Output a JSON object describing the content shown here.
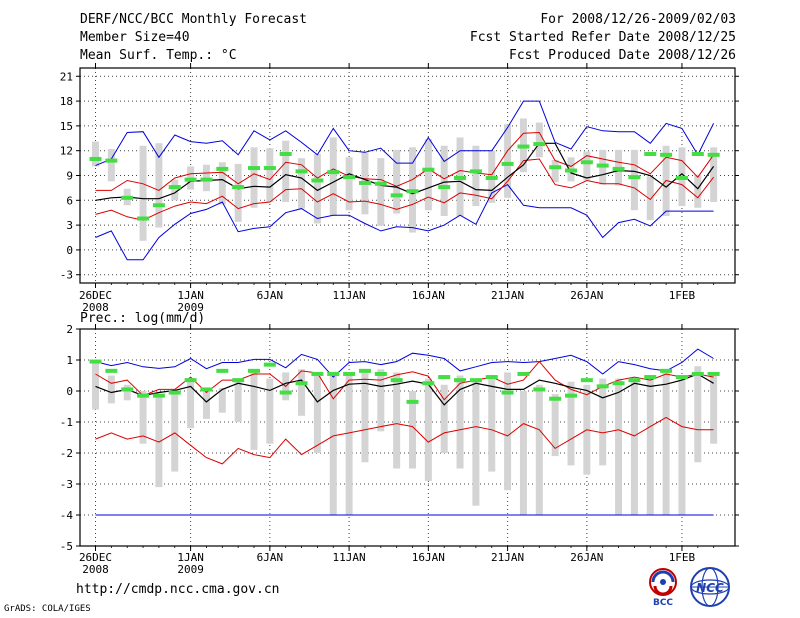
{
  "header": {
    "title": "DERF/NCC/BCC Monthly Forecast",
    "member_size": "Member Size=40",
    "variable": "Mean Surf. Temp.: °C",
    "period": "For 2008/12/26-2009/02/03",
    "started": "Fcst Started Refer Date 2008/12/25",
    "produced": "Fcst Produced Date 2008/12/26"
  },
  "footer": {
    "url": "http://cmdp.ncc.cma.gov.cn",
    "credit": "GrADS: COLA/IGES",
    "logo_bcc": "BCC",
    "logo_ncc": "NCC"
  },
  "colors": {
    "envelope": "#0000dd",
    "spread": "#dd0000",
    "mean": "#000000",
    "median": "#44dd44",
    "box": "#d4d4d4",
    "grid": "#444444"
  },
  "x_ticks": [
    {
      "day": 1,
      "label": "26DEC",
      "sub": "2008"
    },
    {
      "day": 7,
      "label": "1JAN",
      "sub": "2009"
    },
    {
      "day": 12,
      "label": "6JAN",
      "sub": ""
    },
    {
      "day": 17,
      "label": "11JAN",
      "sub": ""
    },
    {
      "day": 22,
      "label": "16JAN",
      "sub": ""
    },
    {
      "day": 27,
      "label": "21JAN",
      "sub": ""
    },
    {
      "day": 32,
      "label": "26JAN",
      "sub": ""
    },
    {
      "day": 38,
      "label": "1FEB",
      "sub": ""
    }
  ],
  "chart_data": [
    {
      "type": "line",
      "title": "Mean Surf. Temp.: °C",
      "ylabel": "°C",
      "xlabel": "",
      "ylim": [
        -4,
        22
      ],
      "yticks": [
        -3,
        0,
        3,
        6,
        9,
        12,
        15,
        18,
        21
      ],
      "x": [
        1,
        2,
        3,
        4,
        5,
        6,
        7,
        8,
        9,
        10,
        11,
        12,
        13,
        14,
        15,
        16,
        17,
        18,
        19,
        20,
        21,
        22,
        23,
        24,
        25,
        26,
        27,
        28,
        29,
        30,
        31,
        32,
        33,
        34,
        35,
        36,
        37,
        38,
        39,
        40
      ],
      "series": [
        {
          "name": "ensemble max",
          "role": "envelope",
          "values": [
            1.5,
            2.3,
            -1.2,
            -1.2,
            1.5,
            3.1,
            4.4,
            4.9,
            5.8,
            2.2,
            2.6,
            2.8,
            4.5,
            5.0,
            3.8,
            4.2,
            4.2,
            3.2,
            2.3,
            2.8,
            2.7,
            2.3,
            3.0,
            4.2,
            3.1,
            6.9,
            7.9,
            5.4,
            5.1,
            5.1,
            5.1,
            4.2,
            1.5,
            3.3,
            3.7,
            2.9,
            4.7,
            4.7,
            4.7,
            4.7
          ]
        },
        {
          "name": "ensemble min",
          "role": "envelope",
          "values": [
            10.2,
            11.0,
            14.2,
            14.3,
            11.2,
            13.9,
            13.1,
            12.9,
            13.2,
            11.5,
            14.4,
            13.3,
            14.4,
            13.0,
            11.5,
            14.7,
            12.0,
            11.8,
            12.3,
            10.5,
            10.5,
            13.6,
            10.7,
            12.0,
            12.0,
            12.0,
            14.8,
            18.0,
            18.0,
            13.0,
            12.2,
            14.9,
            14.4,
            14.3,
            14.3,
            12.9,
            15.3,
            14.7,
            11.5,
            15.3
          ]
        },
        {
          "name": "mean + 1 sd",
          "role": "spread",
          "values": [
            7.2,
            7.2,
            8.4,
            8.0,
            7.2,
            8.7,
            9.2,
            9.3,
            9.4,
            8.0,
            9.2,
            8.5,
            10.6,
            10.3,
            8.7,
            9.8,
            8.9,
            8.6,
            8.5,
            7.7,
            8.5,
            9.8,
            8.6,
            9.6,
            9.3,
            9.1,
            12.0,
            14.1,
            14.2,
            10.8,
            10.1,
            11.4,
            11.0,
            10.6,
            10.3,
            9.2,
            11.2,
            10.8,
            8.8,
            11.5
          ]
        },
        {
          "name": "mean - 1 sd",
          "role": "spread",
          "values": [
            4.3,
            4.8,
            4.0,
            3.6,
            4.5,
            5.3,
            5.8,
            5.6,
            6.5,
            5.0,
            5.6,
            5.8,
            7.3,
            7.4,
            5.8,
            6.8,
            5.8,
            5.9,
            5.5,
            4.9,
            5.5,
            6.4,
            5.7,
            6.9,
            6.6,
            6.2,
            8.3,
            10.8,
            11.0,
            7.9,
            7.5,
            8.4,
            8.0,
            8.0,
            7.5,
            6.1,
            8.4,
            7.9,
            6.3,
            8.8
          ]
        },
        {
          "name": "ensemble mean",
          "role": "mean",
          "values": [
            6.0,
            6.3,
            6.4,
            6.2,
            6.2,
            6.9,
            8.3,
            8.4,
            8.5,
            7.4,
            7.7,
            7.6,
            9.1,
            8.7,
            7.2,
            8.2,
            9.2,
            8.5,
            7.8,
            7.6,
            6.8,
            7.5,
            8.2,
            8.3,
            7.3,
            7.2,
            8.8,
            10.3,
            12.9,
            12.9,
            9.3,
            8.7,
            9.1,
            9.6,
            9.5,
            9.0,
            7.6,
            9.2,
            7.4,
            10.1
          ]
        }
      ],
      "boxes_top": [
        13.1,
        12.2,
        7.4,
        12.6,
        12.9,
        8.5,
        10.1,
        10.3,
        10.6,
        10.4,
        12.4,
        12.3,
        13.2,
        11.1,
        11.6,
        13.6,
        11.2,
        11.8,
        11.1,
        12.1,
        12.4,
        13.4,
        12.6,
        13.6,
        12.6,
        12.0,
        15.2,
        15.9,
        15.4,
        10.9,
        11.2,
        11.9,
        12.1,
        12.1,
        12.1,
        8.9,
        12.6,
        12.4,
        9.1,
        12.4
      ],
      "boxes_bottom": [
        10.1,
        8.3,
        5.4,
        1.1,
        2.7,
        6.0,
        7.3,
        7.1,
        5.5,
        3.4,
        5.1,
        5.8,
        5.8,
        5.0,
        3.2,
        4.1,
        4.8,
        4.3,
        2.9,
        4.4,
        2.1,
        4.8,
        4.1,
        4.1,
        5.3,
        5.7,
        6.3,
        9.4,
        11.2,
        8.2,
        8.3,
        8.4,
        7.9,
        7.8,
        4.8,
        3.6,
        4.1,
        5.3,
        5.1,
        5.8
      ],
      "median": [
        11.0,
        10.8,
        6.3,
        3.8,
        5.4,
        7.6,
        8.5,
        8.5,
        9.8,
        7.6,
        9.9,
        9.9,
        11.6,
        9.5,
        8.4,
        9.4,
        8.8,
        8.1,
        8.0,
        6.6,
        7.1,
        9.7,
        7.6,
        8.7,
        9.5,
        8.7,
        10.4,
        12.5,
        12.8,
        10.0,
        9.6,
        10.6,
        10.2,
        9.8,
        8.8,
        11.6,
        11.5,
        8.7,
        11.6,
        11.5
      ]
    },
    {
      "type": "line",
      "title": "Prec.: log(mm/d)",
      "ylabel": "log(mm/d)",
      "xlabel": "",
      "ylim": [
        -5,
        2
      ],
      "yticks": [
        -5,
        -4,
        -3,
        -2,
        -1,
        0,
        1,
        2
      ],
      "x": [
        1,
        2,
        3,
        4,
        5,
        6,
        7,
        8,
        9,
        10,
        11,
        12,
        13,
        14,
        15,
        16,
        17,
        18,
        19,
        20,
        21,
        22,
        23,
        24,
        25,
        26,
        27,
        28,
        29,
        30,
        31,
        32,
        33,
        34,
        35,
        36,
        37,
        38,
        39,
        40
      ],
      "series": [
        {
          "name": "ensemble max",
          "role": "envelope",
          "values": [
            0.95,
            0.82,
            0.92,
            0.78,
            0.73,
            0.78,
            1.05,
            0.72,
            0.92,
            0.92,
            1.02,
            1.02,
            0.75,
            1.18,
            1.02,
            0.45,
            0.92,
            0.95,
            0.85,
            0.95,
            1.22,
            1.15,
            1.05,
            0.65,
            0.78,
            0.92,
            0.95,
            0.92,
            0.95,
            1.05,
            1.15,
            0.95,
            0.55,
            0.95,
            0.85,
            0.72,
            0.65,
            0.92,
            1.35,
            1.05
          ]
        },
        {
          "name": "ensemble min",
          "role": "envelope",
          "values": [
            -4,
            -4,
            -4,
            -4,
            -4,
            -4,
            -4,
            -4,
            -4,
            -4,
            -4,
            -4,
            -4,
            -4,
            -4,
            -4,
            -4,
            -4,
            -4,
            -4,
            -4,
            -4,
            -4,
            -4,
            -4,
            -4,
            -4,
            -4,
            -4,
            -4,
            -4,
            -4,
            -4,
            -4,
            -4,
            -4,
            -4,
            -4,
            -4,
            -4
          ]
        },
        {
          "name": "mean + 1 sd",
          "role": "spread",
          "values": [
            0.55,
            0.25,
            0.35,
            -0.15,
            0.05,
            0.05,
            0.45,
            -0.05,
            0.35,
            0.35,
            0.55,
            0.55,
            0.15,
            0.65,
            0.58,
            -0.25,
            0.35,
            0.38,
            0.35,
            0.52,
            0.62,
            0.48,
            -0.28,
            0.25,
            0.35,
            0.45,
            0.22,
            0.35,
            0.95,
            0.35,
            0.05,
            -0.12,
            0.15,
            0.35,
            0.45,
            0.35,
            0.55,
            0.45,
            0.55,
            0.45
          ]
        },
        {
          "name": "mean - 1 sd",
          "role": "spread",
          "values": [
            -1.55,
            -1.35,
            -1.55,
            -1.45,
            -1.65,
            -1.35,
            -1.75,
            -2.15,
            -2.35,
            -1.85,
            -2.05,
            -2.15,
            -1.55,
            -2.05,
            -1.75,
            -1.45,
            -1.35,
            -1.25,
            -1.15,
            -1.05,
            -1.15,
            -1.65,
            -1.35,
            -1.25,
            -1.15,
            -1.25,
            -1.45,
            -1.05,
            -1.25,
            -1.85,
            -1.55,
            -1.25,
            -1.35,
            -1.25,
            -1.45,
            -1.15,
            -0.85,
            -1.15,
            -1.25,
            -1.25
          ]
        },
        {
          "name": "ensemble mean",
          "role": "mean",
          "values": [
            0.15,
            -0.05,
            0.05,
            -0.15,
            -0.05,
            0.02,
            0.15,
            -0.35,
            0.05,
            0.25,
            0.15,
            0.02,
            0.25,
            0.35,
            -0.35,
            0.02,
            0.22,
            0.25,
            0.15,
            0.22,
            0.32,
            0.22,
            -0.45,
            0.05,
            0.25,
            0.15,
            0.05,
            0.05,
            0.35,
            0.25,
            0.12,
            0.02,
            -0.22,
            -0.05,
            0.25,
            0.15,
            0.22,
            0.35,
            0.55,
            0.25
          ]
        }
      ],
      "boxes_top": [
        1.0,
        0.5,
        0.2,
        0.0,
        -0.1,
        0.0,
        0.3,
        0.1,
        0.1,
        0.4,
        0.6,
        0.4,
        0.6,
        0.7,
        0.5,
        0.6,
        0.6,
        0.6,
        0.7,
        0.6,
        0.0,
        0.4,
        0.2,
        0.5,
        0.4,
        0.4,
        0.6,
        0.0,
        0.2,
        -0.1,
        0.3,
        0.2,
        0.4,
        0.4,
        0.3,
        0.5,
        0.6,
        0.5,
        0.8,
        0.6
      ],
      "boxes_bottom": [
        -0.6,
        -0.4,
        -0.3,
        -1.7,
        -3.1,
        -2.6,
        -1.2,
        -0.9,
        -0.7,
        -1.0,
        -1.9,
        -1.7,
        -0.3,
        -0.8,
        -2.0,
        -4.0,
        -4.0,
        -2.3,
        -1.3,
        -2.5,
        -2.5,
        -2.9,
        -2.0,
        -2.5,
        -3.7,
        -2.6,
        -3.2,
        -4.0,
        -4.0,
        -2.1,
        -2.4,
        -2.7,
        -2.4,
        -4.0,
        -4.0,
        -4.0,
        -4.0,
        -4.0,
        -2.3,
        -1.7
      ],
      "median": [
        0.95,
        0.65,
        0.05,
        -0.15,
        -0.15,
        -0.05,
        0.35,
        0.05,
        0.65,
        0.35,
        0.65,
        0.85,
        -0.05,
        0.25,
        0.55,
        0.55,
        0.55,
        0.65,
        0.55,
        0.35,
        -0.35,
        0.25,
        0.45,
        0.35,
        0.35,
        0.45,
        -0.05,
        0.55,
        0.05,
        -0.25,
        -0.15,
        0.35,
        0.15,
        0.25,
        0.35,
        0.45,
        0.65,
        0.45,
        0.55,
        0.55
      ]
    }
  ]
}
